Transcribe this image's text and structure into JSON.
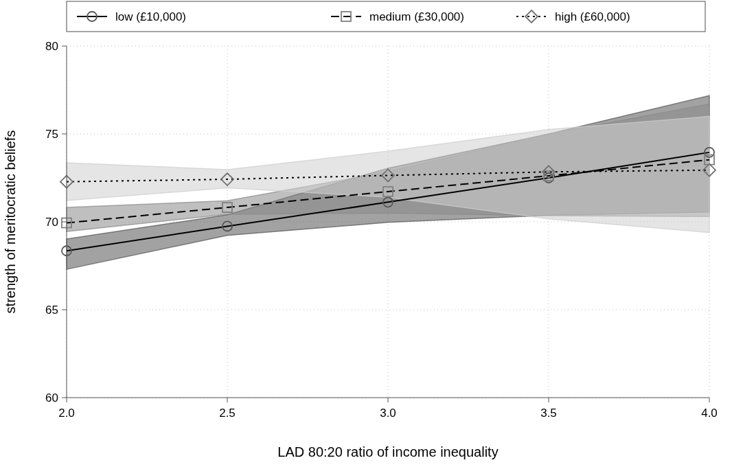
{
  "chart_data": {
    "type": "line",
    "xlabel": "LAD 80:20 ratio of income inequality",
    "ylabel": "strength of meritocratic beliefs",
    "x": [
      2,
      2.5,
      3,
      3.5,
      4
    ],
    "xlim": [
      2,
      4
    ],
    "xticks": [
      {
        "value": 2,
        "label": "2.0"
      },
      {
        "value": 2.5,
        "label": "2.5"
      },
      {
        "value": 3,
        "label": "3.0"
      },
      {
        "value": 3.5,
        "label": "3.5"
      },
      {
        "value": 4,
        "label": "4.0"
      }
    ],
    "ylim": [
      60,
      80
    ],
    "yticks": [
      60,
      65,
      70,
      75,
      80
    ],
    "grid": true,
    "legend": "top",
    "series": [
      {
        "name": "low (£10,000)",
        "color": "#000000",
        "marker": "circle",
        "line_style": "solid",
        "values": [
          68.35,
          69.75,
          71.12,
          72.5,
          73.95
        ],
        "lower": [
          67.3,
          69.23,
          69.97,
          70.37,
          70.56
        ],
        "upper": [
          69.02,
          70.4,
          73.05,
          75.0,
          77.18
        ]
      },
      {
        "name": "medium (£30,000)",
        "color": "#000000",
        "marker": "square",
        "line_style": "dashed",
        "values": [
          69.94,
          70.82,
          71.72,
          72.62,
          73.53
        ],
        "lower": [
          69.45,
          70.43,
          70.5,
          70.35,
          70.3
        ],
        "upper": [
          70.82,
          71.2,
          72.85,
          75.0,
          76.7
        ]
      },
      {
        "name": "high (£60,000)",
        "color": "#000000",
        "marker": "diamond",
        "line_style": "dotted",
        "values": [
          72.28,
          72.42,
          72.64,
          72.84,
          72.94
        ],
        "lower": [
          71.21,
          71.93,
          71.4,
          70.17,
          69.39
        ],
        "upper": [
          73.36,
          72.97,
          74.02,
          75.25,
          76.0
        ]
      }
    ]
  }
}
